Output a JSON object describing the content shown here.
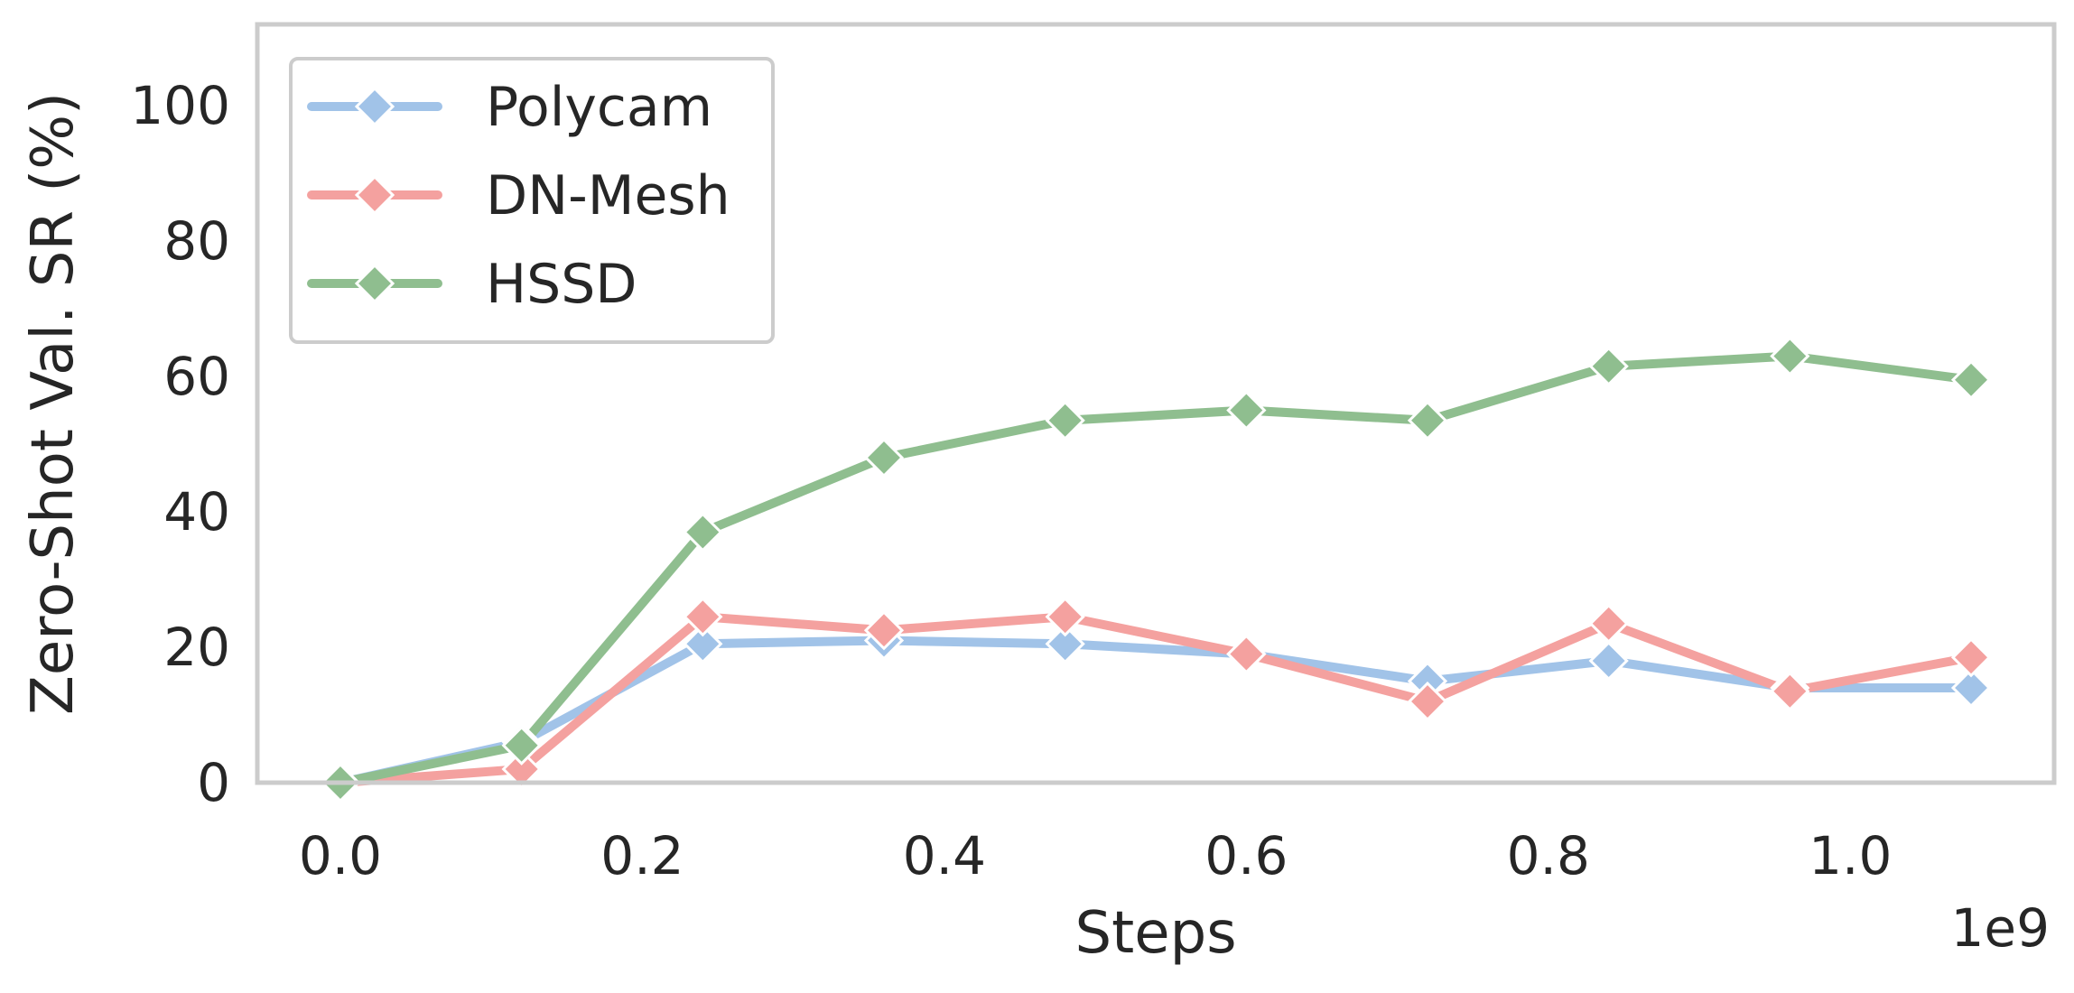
{
  "chart_data": {
    "type": "line",
    "xlabel": "Steps",
    "ylabel": "Zero-Shot Val. SR (%)",
    "x_offset_text": "1e9",
    "xlim": [
      -0.055,
      1.135
    ],
    "ylim": [
      0,
      112
    ],
    "x_ticks": [
      0.0,
      0.2,
      0.4,
      0.6,
      0.8,
      1.0
    ],
    "x_tick_labels": [
      "0.0",
      "0.2",
      "0.4",
      "0.6",
      "0.8",
      "1.0"
    ],
    "y_ticks": [
      0,
      20,
      40,
      60,
      80,
      100
    ],
    "y_tick_labels": [
      "0",
      "20",
      "40",
      "60",
      "80",
      "100"
    ],
    "grid": false,
    "legend_position": "top-left",
    "x": [
      0.0,
      0.12,
      0.24,
      0.36,
      0.48,
      0.6,
      0.72,
      0.84,
      0.96,
      1.08
    ],
    "series": [
      {
        "name": "Polycam",
        "color": "#a1c3e8",
        "marker": "diamond",
        "values": [
          0,
          6,
          20.5,
          21,
          20.5,
          19,
          15,
          18,
          14,
          14
        ]
      },
      {
        "name": "DN-Mesh",
        "color": "#f4a19f",
        "marker": "diamond",
        "values": [
          0,
          2,
          24.5,
          22.5,
          24.5,
          19,
          12,
          23.5,
          13.5,
          18.5
        ]
      },
      {
        "name": "HSSD",
        "color": "#8fbe8f",
        "marker": "diamond",
        "values": [
          0,
          5.5,
          37,
          48,
          53.5,
          55,
          53.5,
          61.5,
          63,
          59.5
        ]
      }
    ]
  }
}
